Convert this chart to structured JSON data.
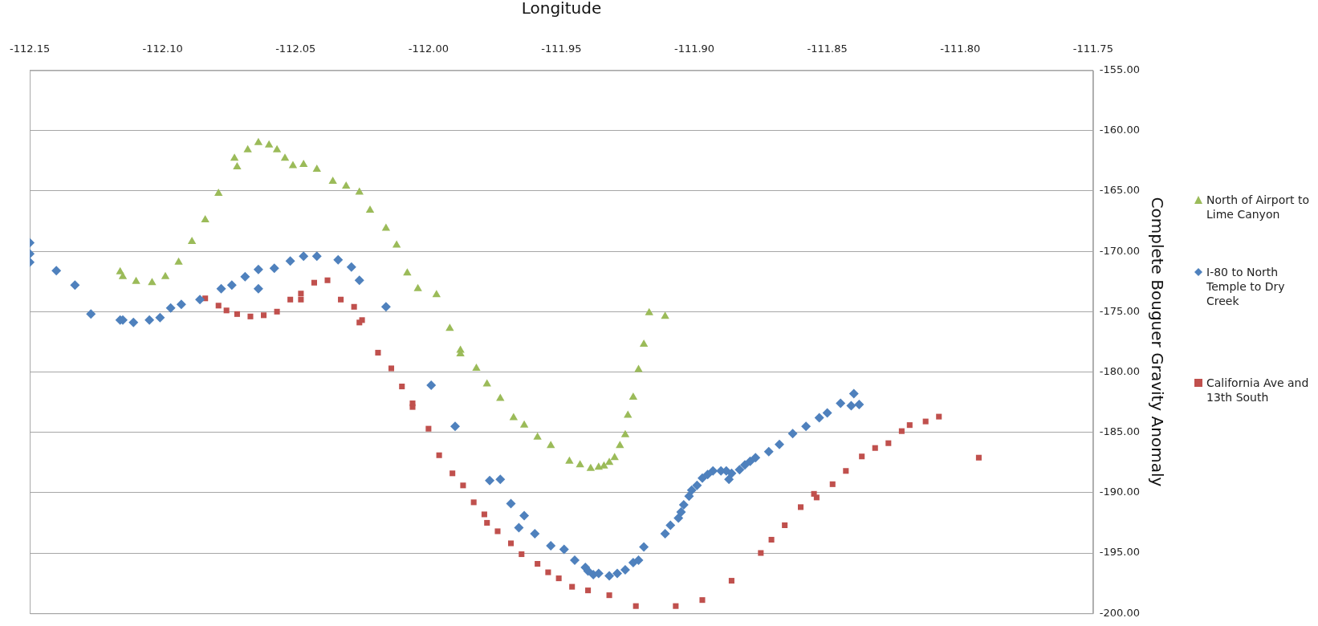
{
  "chart_data": {
    "type": "scatter",
    "xlabel": "Longitude",
    "ylabel": "Complete Bouguer Gravity Anomaly",
    "xlim": [
      -112.15,
      -111.75
    ],
    "xticks": [
      {
        "value": -112.15,
        "label": "-112.15"
      },
      {
        "value": -112.1,
        "label": "-112.10"
      },
      {
        "value": -112.05,
        "label": "-112.05"
      },
      {
        "value": -112,
        "label": "-112.00"
      },
      {
        "value": -111.95,
        "label": "-111.95"
      },
      {
        "value": -111.9,
        "label": "-111.90"
      },
      {
        "value": -111.85,
        "label": "-111.85"
      },
      {
        "value": -111.8,
        "label": "-111.80"
      },
      {
        "value": -111.75,
        "label": "-111.75"
      }
    ],
    "ylim": [
      -200,
      -155
    ],
    "yticks": [
      {
        "value": -200,
        "label": "-200.00"
      },
      {
        "value": -195,
        "label": "-195.00"
      },
      {
        "value": -190,
        "label": "-190.00"
      },
      {
        "value": -185,
        "label": "-185.00"
      },
      {
        "value": -180,
        "label": "-180.00"
      },
      {
        "value": -175,
        "label": "-175.00"
      },
      {
        "value": -170,
        "label": "-170.00"
      },
      {
        "value": -165,
        "label": "-165.00"
      },
      {
        "value": -160,
        "label": "-160.00"
      },
      {
        "value": -155,
        "label": "-155.00"
      }
    ],
    "grid": "y",
    "legend": "right",
    "series": [
      {
        "name": "North of Airport to Lime Canyon",
        "color": "#9bbb59",
        "marker": "triangle",
        "x": [
          -112.116,
          -112.115,
          -112.11,
          -112.104,
          -112.099,
          -112.094,
          -112.089,
          -112.084,
          -112.079,
          -112.073,
          -112.072,
          -112.068,
          -112.064,
          -112.06,
          -112.057,
          -112.054,
          -112.051,
          -112.047,
          -112.042,
          -112.036,
          -112.031,
          -112.026,
          -112.022,
          -112.016,
          -112.012,
          -112.008,
          -112.004,
          -111.997,
          -111.992,
          -111.988,
          -111.988,
          -111.982,
          -111.978,
          -111.973,
          -111.968,
          -111.964,
          -111.959,
          -111.954,
          -111.947,
          -111.943,
          -111.939,
          -111.936,
          -111.934,
          -111.932,
          -111.93,
          -111.928,
          -111.926,
          -111.925,
          -111.923,
          -111.921,
          -111.919,
          -111.917,
          -111.911
        ],
        "values": [
          -171.7,
          -172.1,
          -172.5,
          -172.6,
          -172.1,
          -170.9,
          -169.2,
          -167.4,
          -165.2,
          -162.3,
          -163.0,
          -161.6,
          -161.0,
          -161.2,
          -161.6,
          -162.3,
          -162.9,
          -162.8,
          -163.2,
          -164.2,
          -164.6,
          -165.1,
          -166.6,
          -168.1,
          -169.5,
          -171.8,
          -173.1,
          -173.6,
          -176.4,
          -178.2,
          -178.5,
          -179.7,
          -181.0,
          -182.2,
          -183.8,
          -184.4,
          -185.4,
          -186.1,
          -187.4,
          -187.7,
          -188.0,
          -187.9,
          -187.8,
          -187.5,
          -187.1,
          -186.1,
          -185.2,
          -183.6,
          -182.1,
          -179.8,
          -177.7,
          -175.1,
          -175.4
        ]
      },
      {
        "name": "I-80 to North Temple to Dry Creek",
        "color": "#4f81bd",
        "marker": "diamond",
        "x": [
          -112.15,
          -112.15,
          -112.15,
          -112.14,
          -112.133,
          -112.127,
          -112.116,
          -112.115,
          -112.111,
          -112.105,
          -112.101,
          -112.097,
          -112.093,
          -112.086,
          -112.078,
          -112.074,
          -112.069,
          -112.064,
          -112.064,
          -112.058,
          -112.052,
          -112.047,
          -112.042,
          -112.034,
          -112.029,
          -112.026,
          -112.016,
          -111.999,
          -111.99,
          -111.977,
          -111.973,
          -111.969,
          -111.964,
          -111.966,
          -111.96,
          -111.954,
          -111.949,
          -111.945,
          -111.941,
          -111.94,
          -111.938,
          -111.936,
          -111.932,
          -111.929,
          -111.926,
          -111.923,
          -111.921,
          -111.919,
          -111.911,
          -111.909,
          -111.906,
          -111.905,
          -111.904,
          -111.902,
          -111.901,
          -111.899,
          -111.897,
          -111.895,
          -111.893,
          -111.89,
          -111.888,
          -111.887,
          -111.886,
          -111.883,
          -111.881,
          -111.879,
          -111.877,
          -111.872,
          -111.868,
          -111.863,
          -111.858,
          -111.853,
          -111.85,
          -111.845,
          -111.841,
          -111.84,
          -111.838
        ],
        "values": [
          -169.3,
          -170.2,
          -170.9,
          -171.6,
          -172.8,
          -175.2,
          -175.7,
          -175.7,
          -175.9,
          -175.7,
          -175.5,
          -174.7,
          -174.4,
          -174.0,
          -173.1,
          -172.8,
          -172.1,
          -173.1,
          -171.5,
          -171.4,
          -170.8,
          -170.4,
          -170.4,
          -170.7,
          -171.3,
          -172.4,
          -174.6,
          -181.1,
          -184.5,
          -189.0,
          -188.9,
          -190.9,
          -191.9,
          -192.9,
          -193.4,
          -194.4,
          -194.7,
          -195.6,
          -196.2,
          -196.5,
          -196.8,
          -196.7,
          -196.9,
          -196.7,
          -196.4,
          -195.8,
          -195.6,
          -194.5,
          -193.4,
          -192.7,
          -192.1,
          -191.6,
          -191.0,
          -190.3,
          -189.8,
          -189.4,
          -188.8,
          -188.5,
          -188.2,
          -188.2,
          -188.2,
          -188.9,
          -188.4,
          -188.1,
          -187.7,
          -187.4,
          -187.1,
          -186.6,
          -186.0,
          -185.1,
          -184.5,
          -183.8,
          -183.4,
          -182.6,
          -182.8,
          -181.8,
          -182.7
        ]
      },
      {
        "name": "California Ave and 13th South",
        "color": "#c0504d",
        "marker": "square",
        "x": [
          -112.084,
          -112.079,
          -112.076,
          -112.072,
          -112.067,
          -112.062,
          -112.057,
          -112.052,
          -112.048,
          -112.048,
          -112.043,
          -112.038,
          -112.033,
          -112.028,
          -112.026,
          -112.025,
          -112.019,
          -112.014,
          -112.01,
          -112.006,
          -112.006,
          -112.0,
          -111.996,
          -111.991,
          -111.987,
          -111.983,
          -111.979,
          -111.978,
          -111.974,
          -111.969,
          -111.965,
          -111.959,
          -111.955,
          -111.951,
          -111.946,
          -111.94,
          -111.932,
          -111.922,
          -111.907,
          -111.897,
          -111.886,
          -111.875,
          -111.871,
          -111.866,
          -111.86,
          -111.855,
          -111.854,
          -111.848,
          -111.843,
          -111.837,
          -111.832,
          -111.827,
          -111.822,
          -111.819,
          -111.813,
          -111.808,
          -111.793
        ],
        "values": [
          -173.9,
          -174.5,
          -174.9,
          -175.2,
          -175.4,
          -175.3,
          -175.0,
          -174.0,
          -174.0,
          -173.5,
          -172.6,
          -172.4,
          -174.0,
          -174.6,
          -175.9,
          -175.7,
          -178.4,
          -179.7,
          -181.2,
          -182.9,
          -182.6,
          -184.7,
          -186.9,
          -188.4,
          -189.4,
          -190.8,
          -191.8,
          -192.5,
          -193.2,
          -194.2,
          -195.1,
          -195.9,
          -196.6,
          -197.1,
          -197.8,
          -198.1,
          -198.5,
          -199.4,
          -199.4,
          -198.9,
          -197.3,
          -195.0,
          -193.9,
          -192.7,
          -191.2,
          -190.1,
          -190.4,
          -189.3,
          -188.2,
          -187.0,
          -186.3,
          -185.9,
          -184.9,
          -184.4,
          -184.1,
          -183.7,
          -187.1
        ]
      }
    ]
  }
}
